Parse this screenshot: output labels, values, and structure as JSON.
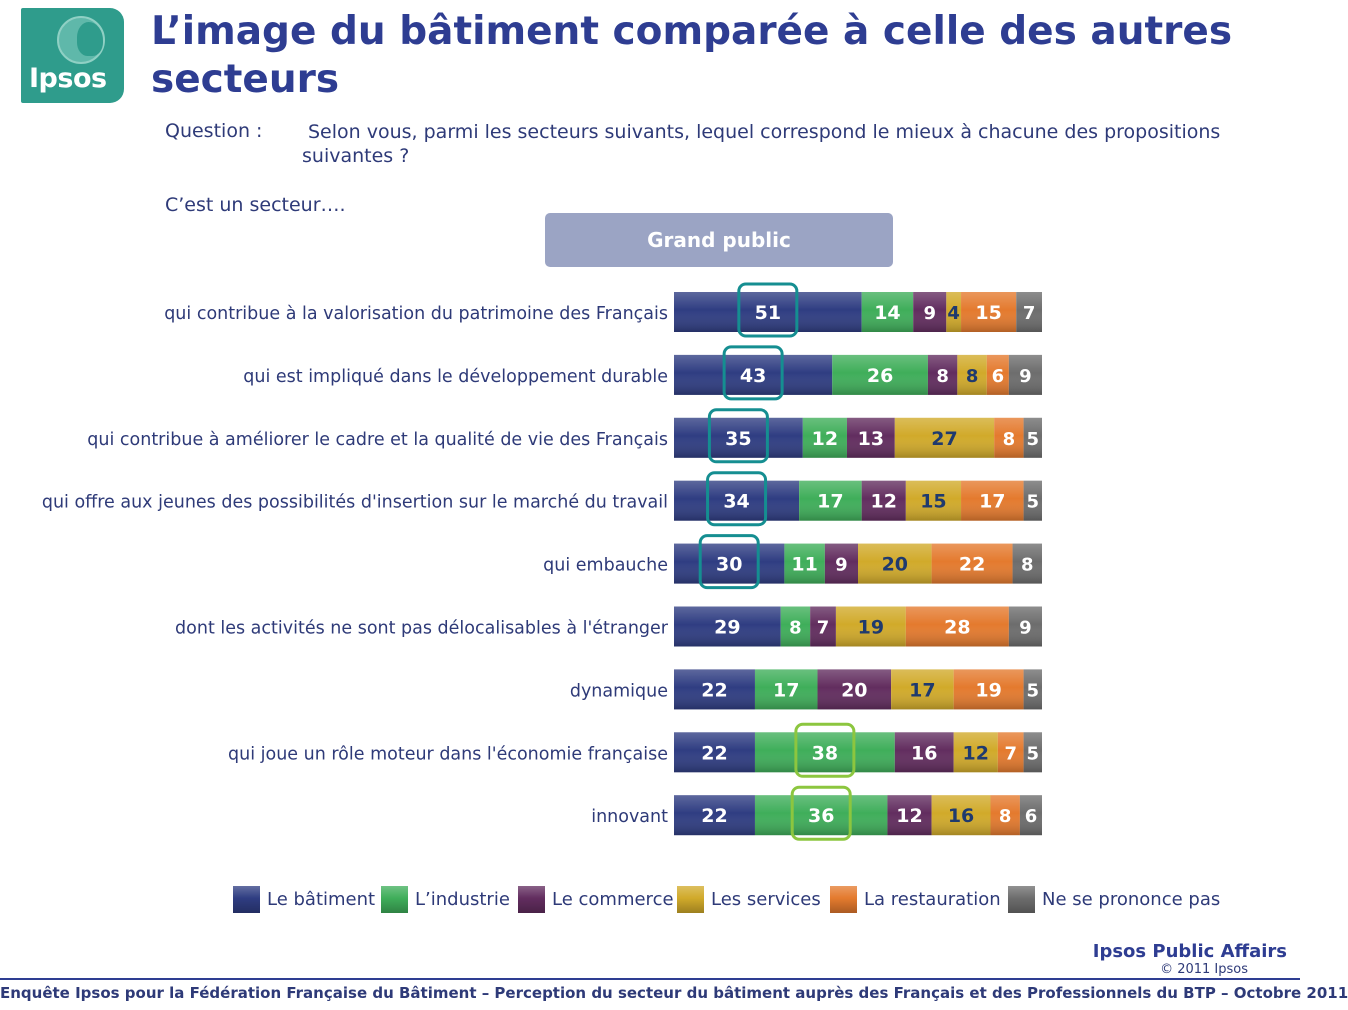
{
  "logo": {
    "text": "Ipsos"
  },
  "title": "L’image du bâtiment comparée à celle des autres secteurs",
  "question": {
    "label": "Question :",
    "text": "Selon vous, parmi les secteurs suivants, lequel correspond le mieux à chacune des propositions suivantes ?"
  },
  "intro": "C’est un secteur….",
  "panel": "Grand public",
  "colors": {
    "navy": "#2f3d82",
    "green": "#3fae5a",
    "purple": "#622d5f",
    "gold": "#d1aa2a",
    "orange": "#e47a2e",
    "gray": "#6d6d6d",
    "teal_highlight": "#158e91",
    "lime_highlight": "#8cc63f"
  },
  "chart_data": {
    "type": "bar",
    "orientation": "horizontal",
    "stacked": true,
    "categories": [
      "qui contribue à la valorisation du patrimoine des Français",
      "qui est impliqué dans le développement durable",
      "qui contribue à améliorer le cadre et la qualité de vie des Français",
      "qui offre aux jeunes des possibilités d'insertion sur le marché du travail",
      "qui embauche",
      "dont les activités ne sont pas délocalisables à l'étranger",
      "dynamique",
      "qui joue un rôle moteur dans l'économie française",
      "innovant"
    ],
    "series": [
      {
        "name": "Le bâtiment",
        "color": "#2f3d82",
        "label_color": "#ffffff",
        "values": [
          51,
          43,
          35,
          34,
          30,
          29,
          22,
          22,
          22
        ]
      },
      {
        "name": "L’industrie",
        "color": "#3fae5a",
        "label_color": "#ffffff",
        "values": [
          14,
          26,
          12,
          17,
          11,
          8,
          17,
          38,
          36
        ]
      },
      {
        "name": "Le commerce",
        "color": "#622d5f",
        "label_color": "#ffffff",
        "values": [
          9,
          8,
          13,
          12,
          9,
          7,
          20,
          16,
          12
        ]
      },
      {
        "name": "Les services",
        "color": "#d1aa2a",
        "label_color": "#1f3a6e",
        "values": [
          4,
          8,
          27,
          15,
          20,
          19,
          17,
          12,
          16
        ]
      },
      {
        "name": "La restauration",
        "color": "#e47a2e",
        "label_color": "#ffffff",
        "values": [
          15,
          6,
          8,
          17,
          22,
          28,
          19,
          7,
          8
        ]
      },
      {
        "name": "Ne se prononce pas",
        "color": "#6d6d6d",
        "label_color": "#ffffff",
        "values": [
          7,
          9,
          5,
          5,
          8,
          9,
          5,
          5,
          6
        ]
      }
    ],
    "highlights": [
      {
        "row": 0,
        "series": 0,
        "color": "teal"
      },
      {
        "row": 1,
        "series": 0,
        "color": "teal"
      },
      {
        "row": 2,
        "series": 0,
        "color": "teal"
      },
      {
        "row": 3,
        "series": 0,
        "color": "teal"
      },
      {
        "row": 4,
        "series": 0,
        "color": "teal"
      },
      {
        "row": 7,
        "series": 1,
        "color": "lime"
      },
      {
        "row": 8,
        "series": 1,
        "color": "lime"
      }
    ],
    "xlim": [
      0,
      100
    ],
    "legend_position": "bottom"
  },
  "legend": [
    {
      "label": "Le bâtiment"
    },
    {
      "label": "L’industrie"
    },
    {
      "label": "Le commerce"
    },
    {
      "label": "Les services"
    },
    {
      "label": "La restauration"
    },
    {
      "label": "Ne se prononce pas"
    }
  ],
  "brand": "Ipsos Public Affairs",
  "copyright": "© 2011 Ipsos",
  "footer": "Enquête Ipsos pour la Fédération Française du Bâtiment – Perception du secteur du bâtiment auprès des Français et des Professionnels du BTP – Octobre 2011"
}
